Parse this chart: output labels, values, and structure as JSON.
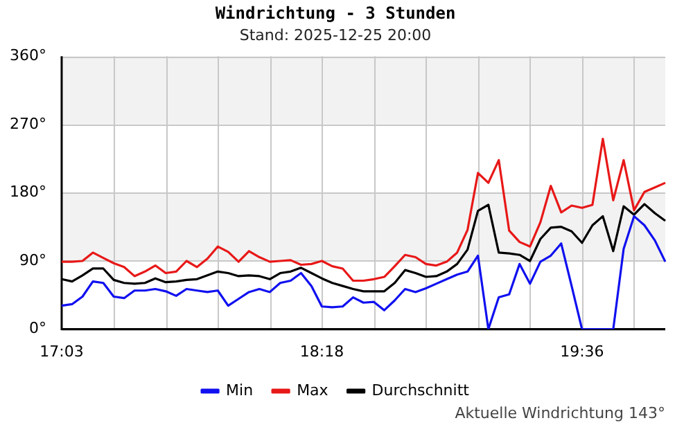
{
  "chart_data": {
    "type": "line",
    "title": "Windrichtung - 3 Stunden",
    "subtitle": "Stand: 2025-12-25 20:00",
    "categories": [
      "17:03",
      null,
      null,
      null,
      null,
      null,
      null,
      null,
      null,
      null,
      null,
      null,
      null,
      null,
      null,
      null,
      null,
      null,
      null,
      null,
      null,
      null,
      null,
      null,
      null,
      "18:18",
      null,
      null,
      null,
      null,
      null,
      null,
      null,
      null,
      null,
      null,
      null,
      null,
      null,
      null,
      null,
      null,
      null,
      null,
      null,
      null,
      null,
      null,
      null,
      null,
      "19:36",
      null,
      null,
      null,
      null,
      null,
      null,
      null,
      null
    ],
    "series": [
      {
        "name": "Min",
        "color": "#1010f0",
        "values": [
          31,
          33,
          43,
          63,
          61,
          43,
          41,
          51,
          51,
          53,
          50,
          44,
          53,
          51,
          49,
          51,
          31,
          40,
          49,
          53,
          49,
          61,
          64,
          74,
          57,
          30,
          29,
          30,
          42,
          35,
          36,
          25,
          38,
          53,
          49,
          54,
          60,
          66,
          72,
          76,
          97,
          0,
          42,
          46,
          86,
          60,
          89,
          97,
          113,
          57,
          0,
          0,
          0,
          0,
          106,
          149,
          137,
          117,
          89
        ]
      },
      {
        "name": "Max",
        "color": "#e81818",
        "values": [
          89,
          89,
          90,
          101,
          94,
          87,
          82,
          70,
          76,
          84,
          74,
          76,
          90,
          82,
          93,
          109,
          102,
          89,
          103,
          95,
          89,
          90,
          91,
          85,
          86,
          90,
          83,
          80,
          64,
          64,
          66,
          69,
          83,
          98,
          95,
          86,
          84,
          89,
          101,
          131,
          206,
          193,
          223,
          130,
          115,
          109,
          141,
          189,
          154,
          163,
          160,
          164,
          251,
          170,
          223,
          157,
          181,
          187,
          193
        ]
      },
      {
        "name": "Durchschnitt",
        "color": "#000000",
        "values": [
          66,
          63,
          71,
          80,
          80,
          65,
          61,
          60,
          61,
          67,
          62,
          63,
          65,
          66,
          71,
          76,
          74,
          70,
          71,
          70,
          66,
          74,
          76,
          81,
          74,
          67,
          61,
          57,
          53,
          50,
          50,
          50,
          61,
          78,
          74,
          69,
          70,
          76,
          86,
          105,
          156,
          164,
          101,
          100,
          98,
          90,
          119,
          134,
          135,
          129,
          114,
          137,
          149,
          103,
          162,
          151,
          165,
          153,
          143
        ]
      }
    ],
    "ylim": [
      0,
      360
    ],
    "yticks": [
      {
        "value": 0,
        "label": "0°"
      },
      {
        "value": 90,
        "label": "90°"
      },
      {
        "value": 180,
        "label": "180°"
      },
      {
        "value": 270,
        "label": "270°"
      },
      {
        "value": 360,
        "label": "360°"
      }
    ],
    "grid": true,
    "legend": "bottom",
    "marker": "none",
    "line_style": "solid",
    "annotations": [
      "Aktuelle Windrichtung 143°"
    ]
  }
}
